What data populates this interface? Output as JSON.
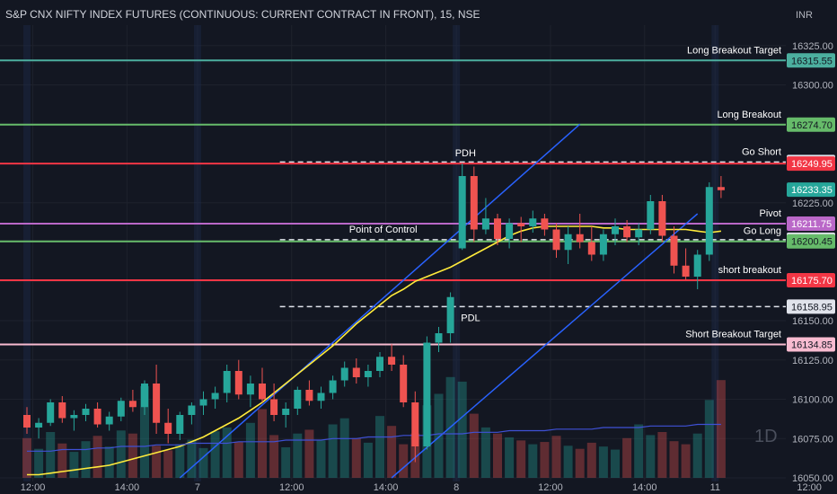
{
  "header": {
    "title": "S&P CNX NIFTY INDEX FUTURES (CONTINUOUS: CURRENT CONTRACT IN FRONT), 15, NSE",
    "currency": "INR"
  },
  "watermark": "1D",
  "chart_data": {
    "type": "candlestick",
    "y_range": [
      16050,
      16330
    ],
    "y_ticks": [
      "16325.00",
      "16300.00",
      "16275.00",
      "16250.00",
      "16225.00",
      "16200.00",
      "16175.00",
      "16150.00",
      "16125.00",
      "16100.00",
      "16075.00",
      "16050.00"
    ],
    "x_ticks": [
      {
        "label": "12:00",
        "index": 0.5
      },
      {
        "label": "14:00",
        "index": 8.5
      },
      {
        "label": "7",
        "index": 14.5
      },
      {
        "label": "12:00",
        "index": 22.5
      },
      {
        "label": "14:00",
        "index": 30.5
      },
      {
        "label": "8",
        "index": 36.5
      },
      {
        "label": "12:00",
        "index": 44.5
      },
      {
        "label": "14:00",
        "index": 52.5
      },
      {
        "label": "11",
        "index": 58.5
      },
      {
        "label": "12:00",
        "index": 66.5
      }
    ],
    "levels": [
      {
        "label": "Long Breakout Target",
        "price_label": "16315.55",
        "value": 16315.55,
        "color": "#4caf9f",
        "style": "solid"
      },
      {
        "label": "Long Breakout",
        "price_label": "16274.70",
        "value": 16274.7,
        "color": "#66bb6a",
        "style": "solid"
      },
      {
        "label": "Go Short",
        "price_label": "16250.95",
        "value": 16250.95,
        "color": "#e0e3eb",
        "style": "dashed"
      },
      {
        "label": "",
        "price_label": "16249.95",
        "value": 16249.95,
        "color": "#f23645",
        "style": "solid"
      },
      {
        "label": "Pivot",
        "price_label": "16211.75",
        "value": 16211.75,
        "color": "#ba68c8",
        "style": "solid"
      },
      {
        "label": "",
        "price_label": "16201.50",
        "value": 16201.5,
        "color": "#e0e3eb",
        "style": "dashed"
      },
      {
        "label": "Go Long",
        "price_label": "16200.45",
        "value": 16200.45,
        "color": "#66bb6a",
        "style": "solid"
      },
      {
        "label": "short breakout",
        "price_label": "16175.70",
        "value": 16175.7,
        "color": "#f23645",
        "style": "solid"
      },
      {
        "label": "",
        "price_label": "16158.95",
        "value": 16158.95,
        "color": "#e0e3eb",
        "style": "dashed"
      },
      {
        "label": "Short  Breakout Target",
        "price_label": "16134.85",
        "value": 16134.85,
        "color": "#f8bbd0",
        "style": "solid"
      }
    ],
    "current_price": {
      "price_label": "16233.35",
      "value": 16233.35,
      "color": "#26a69a"
    },
    "annotations": [
      {
        "text": "PDH",
        "index": 37,
        "value": 16249.95
      },
      {
        "text": "PDL",
        "index": 37.5,
        "value": 16158.95
      },
      {
        "text": "Point of Control",
        "index": 28,
        "value": 16201.5
      }
    ],
    "candles": [
      [
        16090,
        16095,
        16078,
        16082
      ],
      [
        16082,
        16088,
        16075,
        16085
      ],
      [
        16085,
        16100,
        16083,
        16098
      ],
      [
        16098,
        16102,
        16085,
        16088
      ],
      [
        16088,
        16093,
        16080,
        16090
      ],
      [
        16090,
        16097,
        16086,
        16094
      ],
      [
        16094,
        16098,
        16082,
        16084
      ],
      [
        16084,
        16092,
        16080,
        16089
      ],
      [
        16089,
        16101,
        16086,
        16099
      ],
      [
        16099,
        16106,
        16092,
        16095
      ],
      [
        16095,
        16112,
        16090,
        16110
      ],
      [
        16110,
        16122,
        16078,
        16085
      ],
      [
        16085,
        16094,
        16072,
        16078
      ],
      [
        16078,
        16092,
        16074,
        16090
      ],
      [
        16090,
        16098,
        16084,
        16096
      ],
      [
        16096,
        16105,
        16090,
        16100
      ],
      [
        16100,
        16108,
        16094,
        16104
      ],
      [
        16104,
        16122,
        16098,
        16118
      ],
      [
        16118,
        16125,
        16100,
        16103
      ],
      [
        16103,
        16115,
        16095,
        16110
      ],
      [
        16110,
        16120,
        16098,
        16100
      ],
      [
        16100,
        16110,
        16086,
        16090
      ],
      [
        16090,
        16098,
        16082,
        16094
      ],
      [
        16094,
        16108,
        16090,
        16106
      ],
      [
        16106,
        16112,
        16096,
        16099
      ],
      [
        16099,
        16108,
        16094,
        16104
      ],
      [
        16104,
        16115,
        16100,
        16112
      ],
      [
        16112,
        16124,
        16108,
        16120
      ],
      [
        16120,
        16126,
        16110,
        16114
      ],
      [
        16114,
        16122,
        16108,
        16118
      ],
      [
        16118,
        16130,
        16114,
        16127
      ],
      [
        16127,
        16135,
        16118,
        16122
      ],
      [
        16122,
        16128,
        16095,
        16098
      ],
      [
        16098,
        16105,
        16060,
        16070
      ],
      [
        16070,
        16140,
        16068,
        16136
      ],
      [
        16136,
        16146,
        16130,
        16142
      ],
      [
        16142,
        16168,
        16136,
        16165
      ],
      [
        16196,
        16250,
        16195,
        16242
      ],
      [
        16242,
        16248,
        16200,
        16208
      ],
      [
        16208,
        16228,
        16205,
        16215
      ],
      [
        16215,
        16218,
        16198,
        16202
      ],
      [
        16202,
        16215,
        16196,
        16212
      ],
      [
        16212,
        16216,
        16200,
        16210
      ],
      [
        16210,
        16220,
        16206,
        16215
      ],
      [
        16215,
        16218,
        16204,
        16208
      ],
      [
        16208,
        16212,
        16190,
        16195
      ],
      [
        16195,
        16210,
        16186,
        16205
      ],
      [
        16205,
        16218,
        16196,
        16200
      ],
      [
        16200,
        16210,
        16188,
        16192
      ],
      [
        16192,
        16208,
        16188,
        16205
      ],
      [
        16205,
        16215,
        16198,
        16210
      ],
      [
        16210,
        16214,
        16200,
        16203
      ],
      [
        16203,
        16212,
        16198,
        16208
      ],
      [
        16208,
        16230,
        16205,
        16226
      ],
      [
        16226,
        16230,
        16200,
        16204
      ],
      [
        16204,
        16210,
        16180,
        16185
      ],
      [
        16185,
        16196,
        16176,
        16178
      ],
      [
        16178,
        16195,
        16170,
        16192
      ],
      [
        16192,
        16238,
        16188,
        16235
      ],
      [
        16235,
        16242,
        16228,
        16233
      ]
    ],
    "volume": [
      52,
      38,
      60,
      45,
      34,
      48,
      55,
      41,
      62,
      58,
      120,
      42,
      36,
      44,
      50,
      39,
      61,
      66,
      47,
      72,
      90,
      56,
      40,
      58,
      63,
      49,
      70,
      78,
      52,
      46,
      81,
      68,
      44,
      58,
      95,
      110,
      132,
      126,
      84,
      66,
      58,
      53,
      49,
      44,
      47,
      55,
      42,
      38,
      46,
      41,
      37,
      52,
      70,
      56,
      60,
      48,
      44,
      58,
      102,
      128
    ],
    "ema": [
      16052,
      16052,
      16053,
      16054,
      16055,
      16056,
      16057,
      16058,
      16060,
      16062,
      16064,
      16066,
      16068,
      16070,
      16073,
      16076,
      16080,
      16084,
      16088,
      16093,
      16098,
      16104,
      16110,
      16116,
      16122,
      16128,
      16134,
      16141,
      16148,
      16154,
      16160,
      16166,
      16170,
      16175,
      16178,
      16181,
      16184,
      16188,
      16192,
      16196,
      16200,
      16204,
      16207,
      16209,
      16210,
      16210,
      16210,
      16210,
      16210,
      16209,
      16209,
      16208,
      16208,
      16208,
      16208,
      16208,
      16208,
      16207,
      16206,
      16207
    ],
    "ema2": [
      16067,
      16067,
      16067,
      16068,
      16068,
      16068,
      16069,
      16069,
      16070,
      16070,
      16070,
      16071,
      16071,
      16071,
      16072,
      16072,
      16072,
      16072,
      16073,
      16073,
      16073,
      16073,
      16074,
      16074,
      16074,
      16074,
      16075,
      16075,
      16075,
      16076,
      16076,
      16076,
      16077,
      16077,
      16077,
      16078,
      16078,
      16078,
      16079,
      16079,
      16079,
      16080,
      16080,
      16080,
      16080,
      16081,
      16081,
      16081,
      16081,
      16082,
      16082,
      16082,
      16082,
      16083,
      16083,
      16083,
      16083,
      16084,
      16084,
      16084
    ]
  }
}
